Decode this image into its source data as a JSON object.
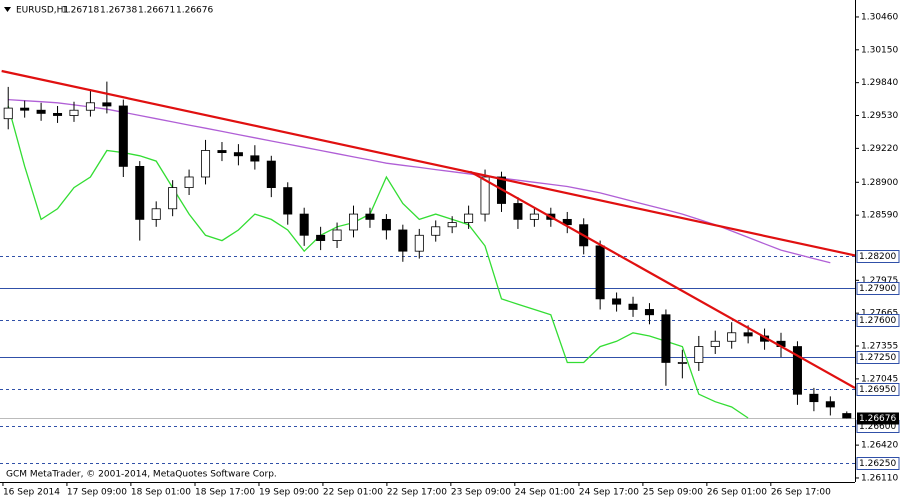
{
  "chart_data": {
    "type": "candlestick",
    "title": "EURUSD,H1",
    "header_prices": [
      1.26718,
      1.26738,
      1.26671,
      1.26676
    ],
    "footer": "GCM MetaTrader, © 2001-2014, MetaQuotes Software Corp.",
    "ylim": [
      1.26072,
      1.3062
    ],
    "yticks": [
      {
        "value": 1.3046,
        "label": "1.30460"
      },
      {
        "value": 1.3015,
        "label": "1.30150"
      },
      {
        "value": 1.2984,
        "label": "1.29840"
      },
      {
        "value": 1.2953,
        "label": "1.29530"
      },
      {
        "value": 1.2922,
        "label": "1.29220"
      },
      {
        "value": 1.289,
        "label": "1.28900"
      },
      {
        "value": 1.2859,
        "label": "1.28590"
      },
      {
        "value": 1.27975,
        "label": "1.27975"
      },
      {
        "value": 1.27665,
        "label": "1.27665"
      },
      {
        "value": 1.27355,
        "label": "1.27355"
      },
      {
        "value": 1.27045,
        "label": "1.27045"
      },
      {
        "value": 1.2642,
        "label": "1.26420"
      },
      {
        "value": 1.2611,
        "label": "1.26110"
      }
    ],
    "xticks": [
      {
        "value": -0.32,
        "label": "16 Sep 2014"
      },
      {
        "value": 3.57,
        "label": "17 Sep 09:00"
      },
      {
        "value": 7.46,
        "label": "18 Sep 01:00"
      },
      {
        "value": 11.36,
        "label": "18 Sep 17:00"
      },
      {
        "value": 15.25,
        "label": "19 Sep 09:00"
      },
      {
        "value": 19.14,
        "label": "22 Sep 01:00"
      },
      {
        "value": 23.03,
        "label": "22 Sep 17:00"
      },
      {
        "value": 26.92,
        "label": "23 Sep 09:00"
      },
      {
        "value": 30.81,
        "label": "24 Sep 01:00"
      },
      {
        "value": 34.71,
        "label": "24 Sep 17:00"
      },
      {
        "value": 38.6,
        "label": "25 Sep 09:00"
      },
      {
        "value": 42.49,
        "label": "26 Sep 01:00"
      },
      {
        "value": 46.38,
        "label": "26 Sep 17:00"
      }
    ],
    "candles": {
      "open": [
        1.295,
        1.296,
        1.2958,
        1.2955,
        1.2953,
        1.2958,
        1.2965,
        1.2962,
        1.2905,
        1.2855,
        1.2865,
        1.2885,
        1.2895,
        1.292,
        1.2918,
        1.2915,
        1.291,
        1.2885,
        1.286,
        1.284,
        1.2835,
        1.2845,
        1.286,
        1.2855,
        1.2845,
        1.2825,
        1.284,
        1.2848,
        1.2852,
        1.286,
        1.2895,
        1.287,
        1.2855,
        1.286,
        1.2855,
        1.285,
        1.283,
        1.278,
        1.2775,
        1.277,
        1.2765,
        1.272,
        1.272,
        1.2735,
        1.274,
        1.2748,
        1.2745,
        1.274,
        1.2735,
        1.269,
        1.2683,
        1.26718
      ],
      "high": [
        1.298,
        1.2967,
        1.2965,
        1.2962,
        1.2966,
        1.2978,
        1.2985,
        1.2968,
        1.291,
        1.2872,
        1.2892,
        1.2902,
        1.293,
        1.2928,
        1.2926,
        1.2925,
        1.2915,
        1.289,
        1.2866,
        1.2848,
        1.2852,
        1.2868,
        1.2866,
        1.286,
        1.285,
        1.2846,
        1.2854,
        1.2858,
        1.2868,
        1.2902,
        1.29,
        1.2876,
        1.2866,
        1.2866,
        1.2862,
        1.2856,
        1.2835,
        1.2786,
        1.2782,
        1.2776,
        1.277,
        1.2732,
        1.2745,
        1.275,
        1.2758,
        1.2755,
        1.2752,
        1.2748,
        1.274,
        1.2696,
        1.2688,
        1.26738
      ],
      "low": [
        1.294,
        1.2951,
        1.2948,
        1.2946,
        1.2947,
        1.2952,
        1.2955,
        1.2895,
        1.2835,
        1.2848,
        1.2858,
        1.2878,
        1.2888,
        1.291,
        1.2906,
        1.2902,
        1.2876,
        1.285,
        1.283,
        1.2826,
        1.2828,
        1.2838,
        1.2847,
        1.2836,
        1.2815,
        1.2818,
        1.2834,
        1.2842,
        1.2846,
        1.2853,
        1.2862,
        1.2846,
        1.2848,
        1.2848,
        1.2842,
        1.2822,
        1.277,
        1.2768,
        1.2763,
        1.2756,
        1.2698,
        1.2705,
        1.2712,
        1.2728,
        1.2733,
        1.2738,
        1.2732,
        1.2725,
        1.268,
        1.2674,
        1.267,
        1.26671
      ],
      "close": [
        1.296,
        1.2958,
        1.2955,
        1.2953,
        1.2958,
        1.2965,
        1.2962,
        1.2905,
        1.2855,
        1.2865,
        1.2885,
        1.2895,
        1.292,
        1.2918,
        1.2915,
        1.291,
        1.2885,
        1.286,
        1.284,
        1.2835,
        1.2845,
        1.286,
        1.2855,
        1.2845,
        1.2825,
        1.284,
        1.2848,
        1.2852,
        1.286,
        1.2895,
        1.287,
        1.2855,
        1.286,
        1.2855,
        1.285,
        1.283,
        1.278,
        1.2775,
        1.277,
        1.2765,
        1.272,
        1.272,
        1.2735,
        1.274,
        1.2748,
        1.2745,
        1.274,
        1.2735,
        1.269,
        1.2683,
        1.2678,
        1.26676
      ]
    },
    "series": [
      {
        "color": "#b05fd6",
        "values": [
          1.2968,
          1.2967,
          1.2966,
          1.2965,
          1.2963,
          1.2961,
          1.2959,
          1.2956,
          1.2953,
          1.295,
          1.2947,
          1.2944,
          1.2941,
          1.2938,
          1.2935,
          1.2932,
          1.2929,
          1.2926,
          1.2923,
          1.292,
          1.2917,
          1.2914,
          1.2911,
          1.2908,
          1.2906,
          1.2904,
          1.2902,
          1.29,
          1.2898,
          1.2896,
          1.2894,
          1.2892,
          1.289,
          1.2888,
          1.2886,
          1.2883,
          1.288,
          1.2876,
          1.2872,
          1.2868,
          1.2864,
          1.286,
          1.2855,
          1.285,
          1.2844,
          1.2838,
          1.2832,
          1.2826,
          1.2822,
          1.2818,
          1.2814,
          null
        ]
      },
      {
        "color": "#33dd33",
        "values": [
          1.2962,
          1.2905,
          1.2855,
          1.2865,
          1.2885,
          1.2895,
          1.292,
          1.2918,
          1.2915,
          1.291,
          1.2885,
          1.286,
          1.284,
          1.2835,
          1.2845,
          1.286,
          1.2855,
          1.2845,
          1.2825,
          1.284,
          1.2848,
          1.2852,
          1.286,
          1.2895,
          1.287,
          1.2855,
          1.286,
          1.2855,
          1.285,
          1.283,
          1.278,
          1.2775,
          1.277,
          1.2765,
          1.272,
          1.272,
          1.2735,
          1.274,
          1.2748,
          1.2745,
          1.274,
          1.2735,
          1.269,
          1.2683,
          1.2678,
          1.26676,
          null,
          null,
          null,
          null,
          null,
          null
        ]
      }
    ],
    "trendlines": [
      {
        "color": "#e01010",
        "x": [
          -0.4,
          51.5
        ],
        "y": [
          1.2995,
          1.2821
        ]
      },
      {
        "color": "#e01010",
        "x": [
          28.1,
          51.5
        ],
        "y": [
          1.29,
          1.26959
        ]
      }
    ],
    "levels": [
      {
        "value": 1.282,
        "label": "1.28200",
        "style": "dashed"
      },
      {
        "value": 1.279,
        "label": "1.27900",
        "style": "solid"
      },
      {
        "value": 1.276,
        "label": "1.27600",
        "style": "dashed"
      },
      {
        "value": 1.2725,
        "label": "1.27250",
        "style": "solid"
      },
      {
        "value": 1.2695,
        "label": "1.26950",
        "style": "dashed"
      },
      {
        "value": 1.266,
        "label": "1.26600",
        "style": "dashed"
      },
      {
        "value": 1.2625,
        "label": "1.26250",
        "style": "dashed"
      }
    ],
    "current_price": 1.26676
  }
}
